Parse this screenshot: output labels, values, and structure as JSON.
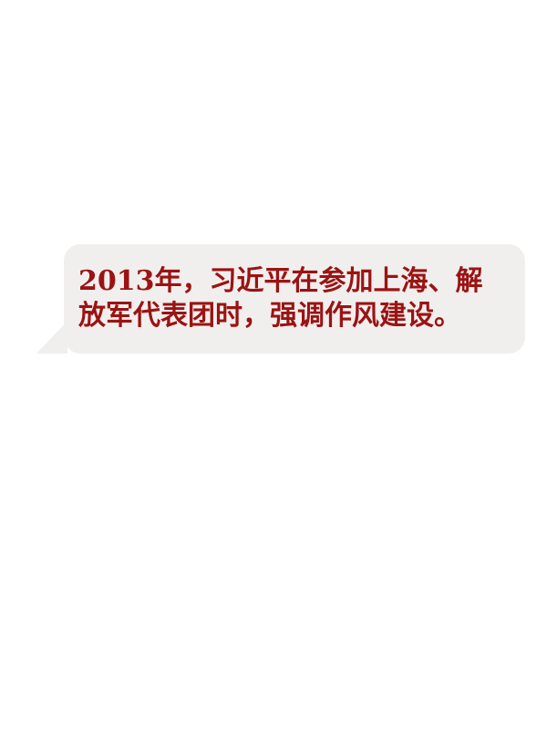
{
  "caption": {
    "line1": "2013年，习近平在参加上海、解",
    "line2": "放军代表团时，强调作风建设。"
  },
  "colors": {
    "text": "#9b1313",
    "bubble": "#f1efee",
    "background": "#ffffff"
  }
}
